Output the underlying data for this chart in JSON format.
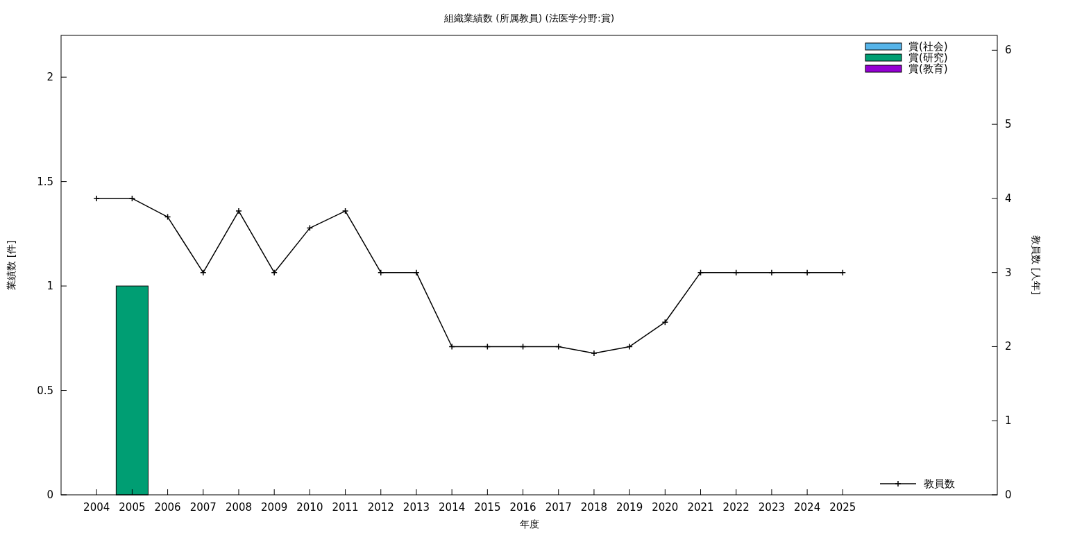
{
  "chart_data": {
    "type": "bar",
    "title": "組織業績数 (所属教員) (法医学分野:賞)",
    "xlabel": "年度",
    "ylabel": "業績数 [件]",
    "y2label": "教員数 [人年]",
    "x": [
      2004,
      2005,
      2006,
      2007,
      2008,
      2009,
      2010,
      2011,
      2012,
      2013,
      2014,
      2015,
      2016,
      2017,
      2018,
      2019,
      2020,
      2021,
      2022,
      2023,
      2024,
      2025
    ],
    "xlim": [
      2003,
      2029.35
    ],
    "xticks": [
      2004,
      2005,
      2006,
      2007,
      2008,
      2009,
      2010,
      2011,
      2012,
      2013,
      2014,
      2015,
      2016,
      2017,
      2018,
      2019,
      2020,
      2021,
      2022,
      2023,
      2024,
      2025
    ],
    "ylim": [
      0,
      2.2
    ],
    "yticks": [
      0,
      0.5,
      1,
      1.5,
      2
    ],
    "y2lim": [
      0,
      6.2
    ],
    "y2ticks": [
      0,
      1,
      2,
      3,
      4,
      5,
      6
    ],
    "stacked": true,
    "legend": "top right",
    "grid": false,
    "series": [
      {
        "name": "賞(社会)",
        "color": "#56b4e9",
        "values": [
          0,
          0,
          0,
          0,
          0,
          0,
          0,
          0,
          0,
          0,
          0,
          0,
          0,
          0,
          0,
          0,
          0,
          0,
          0,
          0,
          0,
          0
        ]
      },
      {
        "name": "賞(研究)",
        "color": "#009e73",
        "values": [
          0,
          1,
          0,
          0,
          0,
          0,
          0,
          0,
          0,
          0,
          0,
          0,
          0,
          0,
          0,
          0,
          0,
          0,
          0,
          0,
          0,
          0
        ]
      },
      {
        "name": "賞(教育)",
        "color": "#9400d3",
        "values": [
          0,
          0,
          0,
          0,
          0,
          0,
          0,
          0,
          0,
          0,
          0,
          0,
          0,
          0,
          0,
          0,
          0,
          0,
          0,
          0,
          0,
          0
        ]
      },
      {
        "name": "教員数",
        "type": "line",
        "axis": "y2",
        "color": "#000000",
        "marker": "cross",
        "line_style": "solid",
        "values": [
          4,
          4,
          3.75,
          3,
          3.83,
          3,
          3.6,
          3.83,
          3,
          3,
          2,
          2,
          2,
          2,
          1.91,
          2,
          2.33,
          3,
          3,
          3,
          3,
          3
        ]
      }
    ]
  }
}
